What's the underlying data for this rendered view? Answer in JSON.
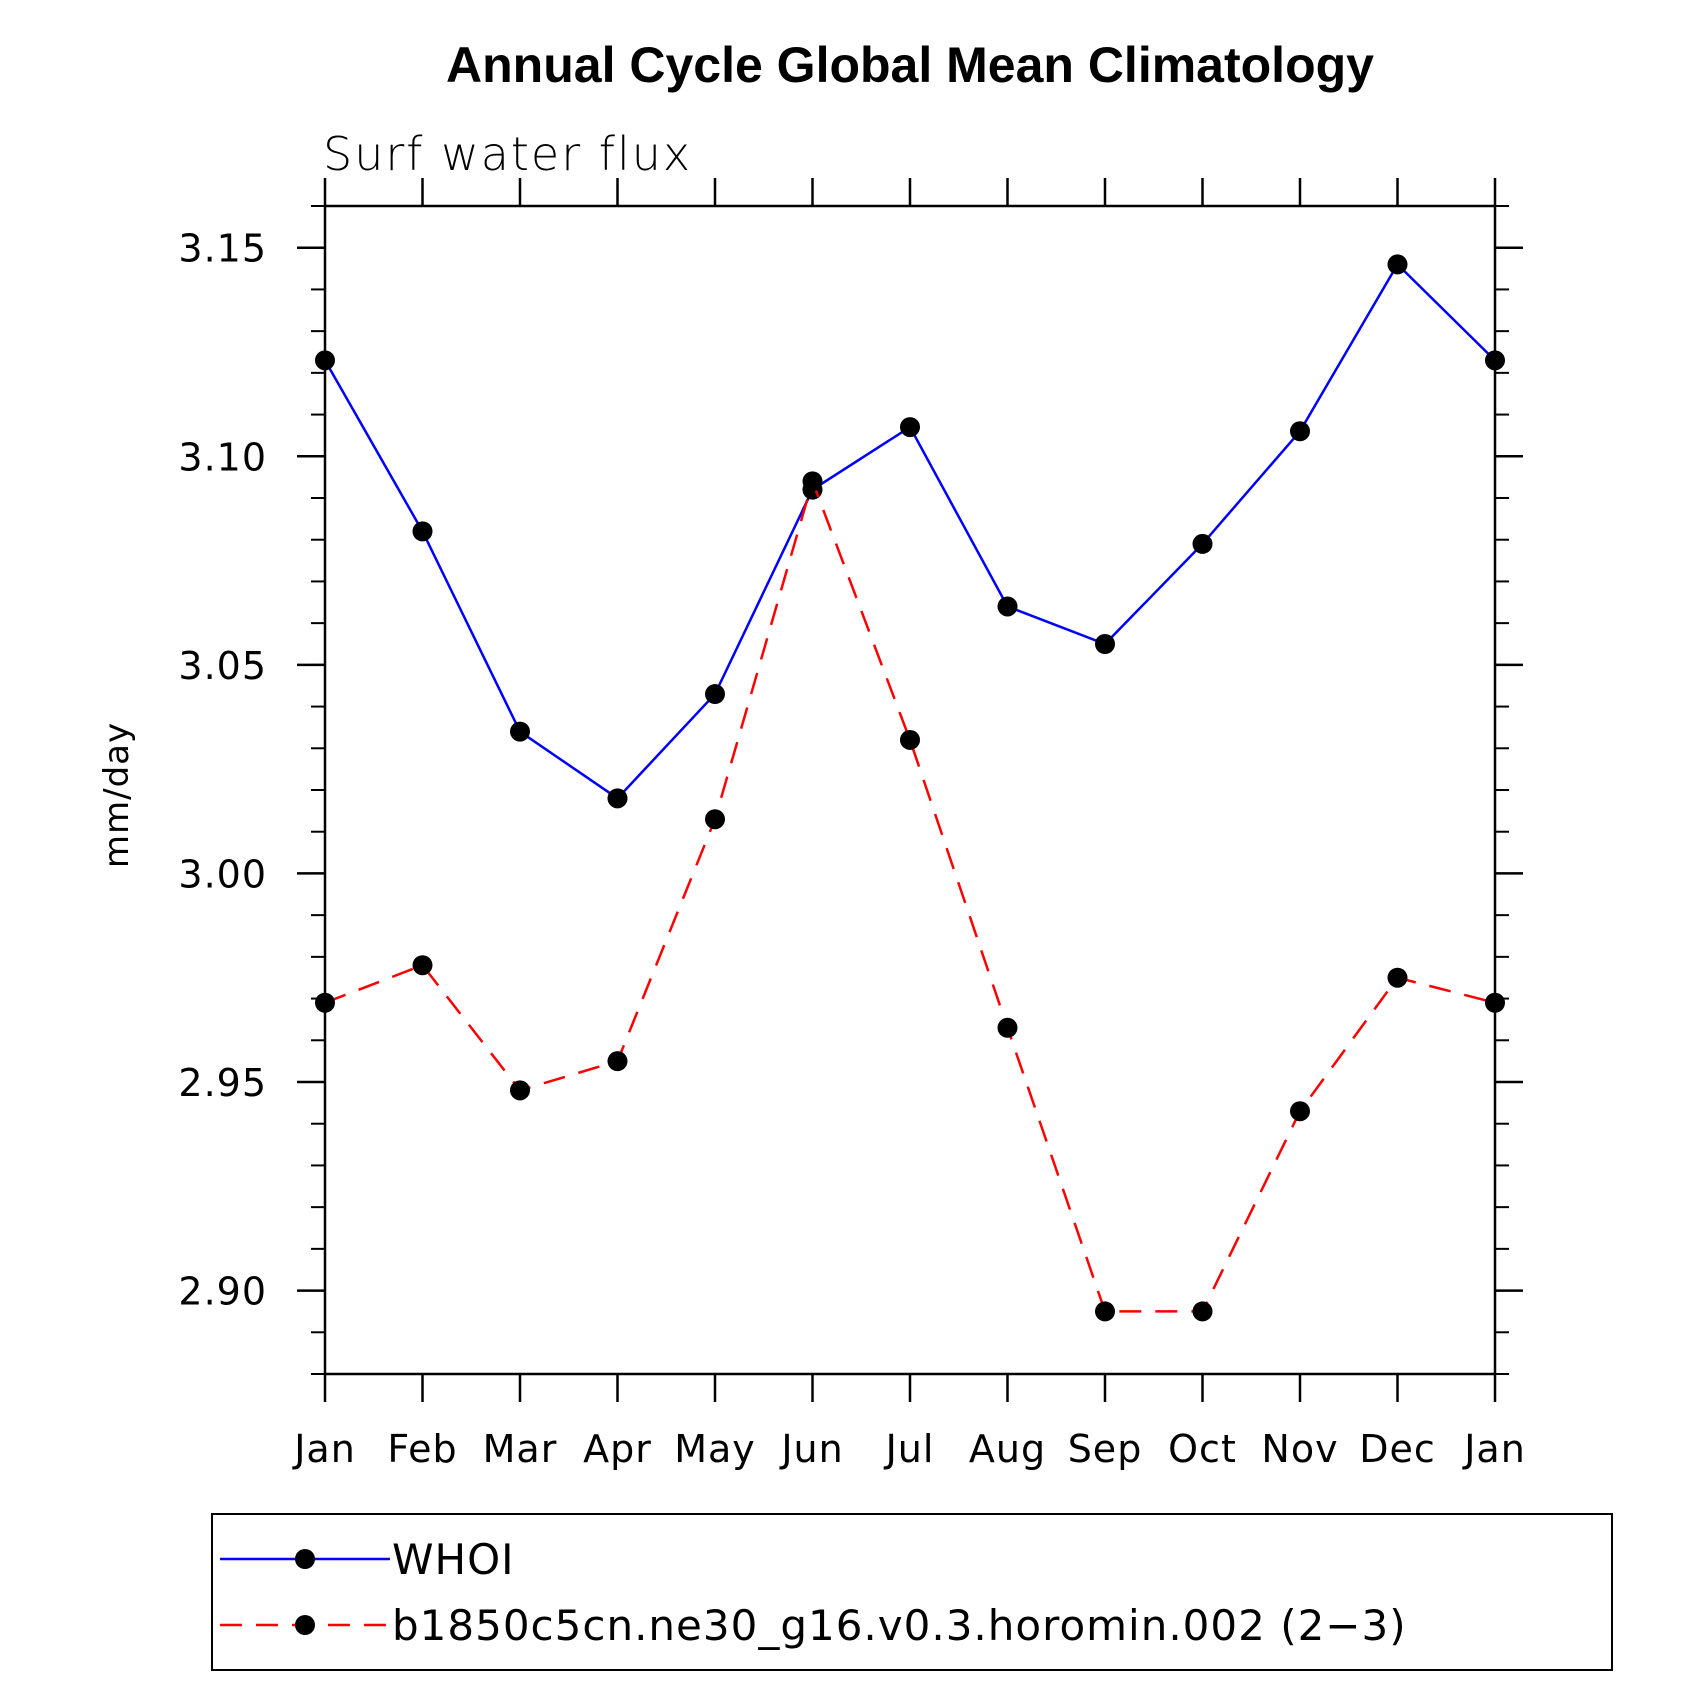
{
  "chart_data": {
    "type": "line",
    "title": "Annual Cycle Global Mean Climatology",
    "subtitle": "Surf water flux",
    "ylabel": "mm/day",
    "xlabel": "",
    "categories": [
      "Jan",
      "Feb",
      "Mar",
      "Apr",
      "May",
      "Jun",
      "Jul",
      "Aug",
      "Sep",
      "Oct",
      "Nov",
      "Dec",
      "Jan"
    ],
    "ylim": [
      2.88,
      3.16
    ],
    "yticks": [
      "3.15",
      "3.10",
      "3.05",
      "3.00",
      "2.95",
      "2.90"
    ],
    "ytick_values": [
      3.15,
      3.1,
      3.05,
      3.0,
      2.95,
      2.9
    ],
    "legend_placement": "bottom",
    "series": [
      {
        "name": "WHOI",
        "color": "#0000ff",
        "dash": "solid",
        "values": [
          3.123,
          3.082,
          3.034,
          3.018,
          3.043,
          3.092,
          3.107,
          3.064,
          3.055,
          3.079,
          3.106,
          3.146,
          3.123
        ]
      },
      {
        "name": "b1850c5cn.ne30_g16.v0.3.horomin.002 (2−3)",
        "color": "#ff0000",
        "dash": "dashed",
        "values": [
          2.969,
          2.978,
          2.948,
          2.955,
          3.013,
          3.094,
          3.032,
          2.963,
          2.895,
          2.895,
          2.943,
          2.975,
          2.969
        ]
      }
    ]
  }
}
